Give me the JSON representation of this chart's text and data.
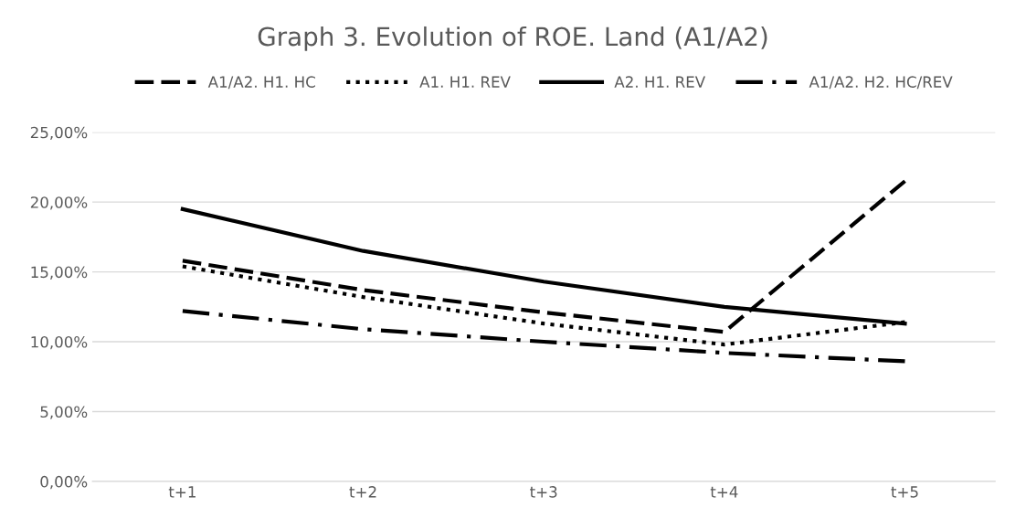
{
  "chart_data": {
    "type": "line",
    "title": "Graph 3. Evolution of ROE. Land (A1/A2)",
    "categories": [
      "t+1",
      "t+2",
      "t+3",
      "t+4",
      "t+5"
    ],
    "series": [
      {
        "name": "A1/A2. H1. HC",
        "color": "#000000",
        "line_style": "dashed",
        "values": [
          15.8,
          13.7,
          12.1,
          10.7,
          21.5
        ]
      },
      {
        "name": "A1. H1. REV",
        "color": "#000000",
        "line_style": "dotted",
        "values": [
          15.4,
          13.2,
          11.3,
          9.8,
          11.4
        ]
      },
      {
        "name": "A2. H1. REV",
        "color": "#000000",
        "line_style": "solid",
        "values": [
          19.5,
          16.5,
          14.3,
          12.5,
          11.3
        ]
      },
      {
        "name": "A1/A2. H2. HC/REV",
        "color": "#000000",
        "line_style": "dashdot",
        "values": [
          12.2,
          10.9,
          10.0,
          9.2,
          8.6
        ]
      }
    ],
    "ylim": [
      0,
      25
    ],
    "yticks": [
      {
        "value": 0,
        "label": "0,00%"
      },
      {
        "value": 5,
        "label": "5,00%"
      },
      {
        "value": 10,
        "label": "10,00%"
      },
      {
        "value": 15,
        "label": "15,00%"
      },
      {
        "value": 20,
        "label": "20,00%"
      },
      {
        "value": 25,
        "label": "25,00%"
      }
    ],
    "grid": "y",
    "legend": "top",
    "marker": "none"
  }
}
